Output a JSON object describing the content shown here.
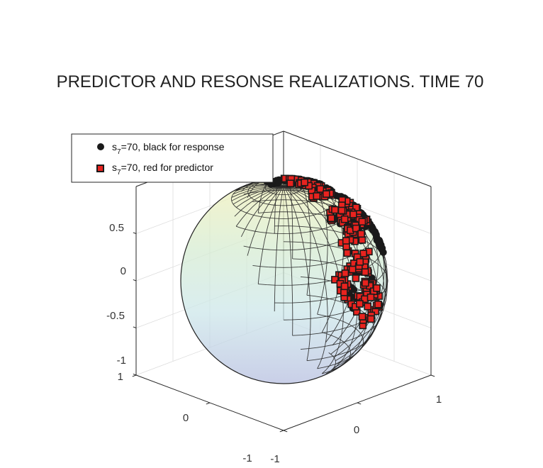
{
  "chart_data": {
    "type": "scatter",
    "title": "PREDICTOR AND RESONSE REALIZATIONS. TIME 70",
    "xlabel": "",
    "ylabel": "",
    "zlabel": "",
    "xlim": [
      -1,
      1
    ],
    "ylim": [
      -1,
      1
    ],
    "zlim": [
      -1,
      1
    ],
    "x_ticks": [
      "-1",
      "0",
      "1"
    ],
    "y_ticks": [
      "-1",
      "0",
      "1"
    ],
    "z_ticks": [
      "-1",
      "-0.5",
      "0",
      "0.5"
    ],
    "grid": true,
    "legend_position": "top-left",
    "surface": "unit-sphere",
    "series": [
      {
        "label": {
          "main": "s",
          "sub": "7",
          "rest": "=70, black for response"
        },
        "marker": "circle",
        "color": "#1a1a1a",
        "clusters": [
          {
            "lon": 22,
            "lat": 58,
            "count": 55
          },
          {
            "lon": 38,
            "lat": 38,
            "count": 60
          },
          {
            "lon": 25,
            "lat": 12,
            "count": 45
          },
          {
            "lon": 10,
            "lat": -2,
            "count": 40
          },
          {
            "lon": -12,
            "lat": 18,
            "count": 30
          },
          {
            "lon": -40,
            "lat": -8,
            "count": 18
          }
        ]
      },
      {
        "label": {
          "main": "s",
          "sub": "7",
          "rest": "=70, red for predictor"
        },
        "marker": "square",
        "color": "#e8231f",
        "clusters": [
          {
            "lon": 30,
            "lat": 45,
            "count": 40
          },
          {
            "lon": 45,
            "lat": 30,
            "count": 35
          },
          {
            "lon": 28,
            "lat": 8,
            "count": 30
          },
          {
            "lon": -15,
            "lat": 22,
            "count": 35
          },
          {
            "lon": -25,
            "lat": 8,
            "count": 20
          },
          {
            "lon": -42,
            "lat": -5,
            "count": 45
          },
          {
            "lon": -38,
            "lat": -25,
            "count": 30
          }
        ]
      }
    ]
  }
}
